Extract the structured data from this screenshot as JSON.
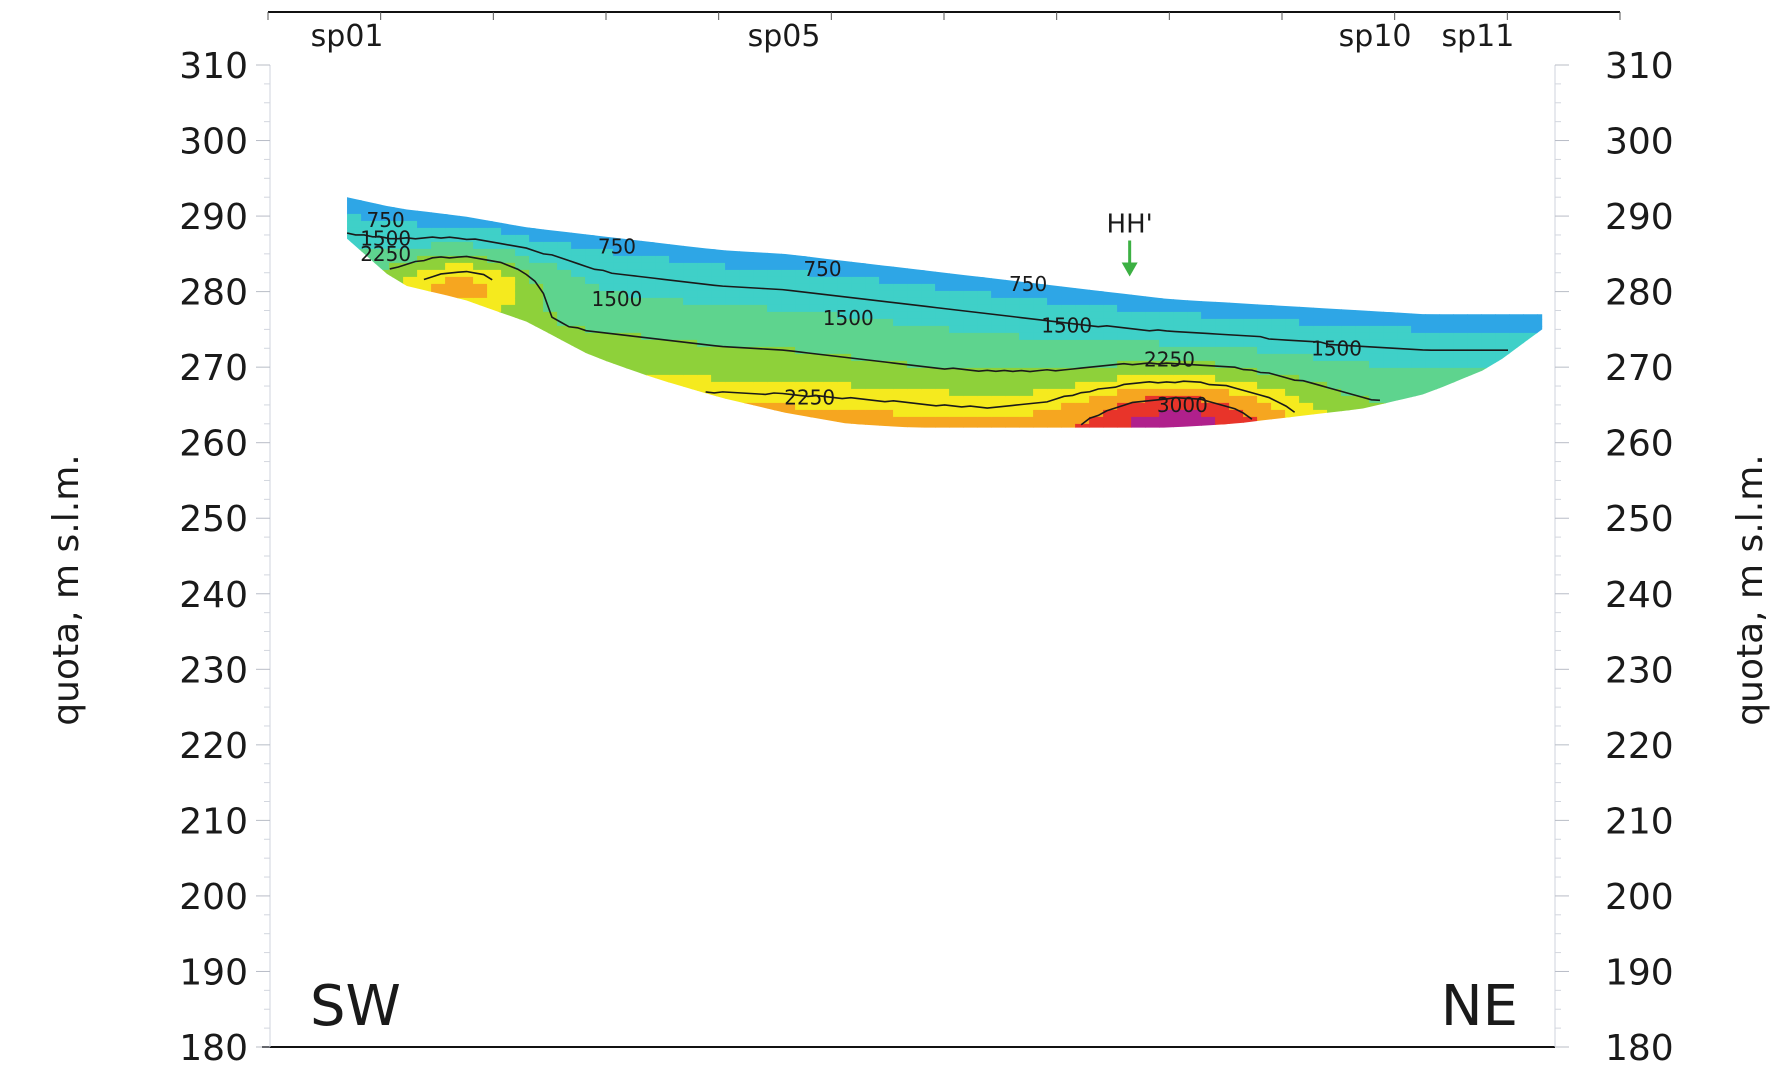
{
  "chart_data": {
    "type": "heatmap",
    "title": "",
    "ylabel": "quota, m s.l.m.",
    "ylabel_right": "quota, m s.l.m.",
    "ylim": [
      180,
      310
    ],
    "yticks": [
      310,
      300,
      290,
      280,
      270,
      260,
      250,
      240,
      230,
      220,
      210,
      200,
      190,
      180
    ],
    "xlim": [
      0,
      1
    ],
    "shotpoints": [
      {
        "label": "sp01",
        "x": 0.06
      },
      {
        "label": "sp05",
        "x": 0.4
      },
      {
        "label": "sp10",
        "x": 0.86
      },
      {
        "label": "sp11",
        "x": 0.94
      }
    ],
    "marker": {
      "label": "HH'",
      "x": 0.669,
      "elevation": 282,
      "color": "#3cb043"
    },
    "direction_left": "SW",
    "direction_right": "NE",
    "section": {
      "x": [
        0.06,
        0.1,
        0.15,
        0.2,
        0.25,
        0.3,
        0.35,
        0.4,
        0.45,
        0.5,
        0.55,
        0.6,
        0.65,
        0.7,
        0.75,
        0.8,
        0.85,
        0.9,
        0.95,
        0.99
      ],
      "top": [
        292.5,
        291.0,
        290.0,
        288.5,
        287.5,
        286.5,
        285.5,
        285.0,
        284.0,
        283.0,
        282.0,
        281.0,
        280.0,
        279.0,
        278.5,
        278.0,
        277.5,
        277.0,
        277.0,
        277.0
      ],
      "bottom": [
        287.0,
        281.0,
        279.0,
        276.0,
        271.5,
        268.5,
        266.0,
        264.0,
        262.5,
        262.0,
        262.0,
        262.0,
        262.0,
        262.0,
        262.5,
        263.5,
        264.5,
        266.5,
        270.0,
        275.0
      ]
    },
    "colorbar": {
      "levels": [
        0,
        500,
        1000,
        1500,
        2000,
        2500,
        3000,
        3500
      ],
      "colors": [
        "#2ea6e6",
        "#3fd0c8",
        "#5ed48e",
        "#8ed13a",
        "#f5ea1e",
        "#f6a620",
        "#e8342a",
        "#b0208c"
      ]
    },
    "contours": [
      {
        "value": 750,
        "labels": [
          {
            "x": 0.09,
            "y": 289.5
          },
          {
            "x": 0.27,
            "y": 286.0
          },
          {
            "x": 0.43,
            "y": 283.0
          },
          {
            "x": 0.59,
            "y": 281.0
          }
        ]
      },
      {
        "value": 1500,
        "labels": [
          {
            "x": 0.09,
            "y": 287.0
          },
          {
            "x": 0.27,
            "y": 279.0
          },
          {
            "x": 0.45,
            "y": 276.5
          },
          {
            "x": 0.62,
            "y": 275.5
          },
          {
            "x": 0.83,
            "y": 272.5
          }
        ]
      },
      {
        "value": 2250,
        "labels": [
          {
            "x": 0.09,
            "y": 285.0
          },
          {
            "x": 0.42,
            "y": 266.0
          },
          {
            "x": 0.7,
            "y": 271.0
          }
        ]
      },
      {
        "value": 3000,
        "labels": [
          {
            "x": 0.71,
            "y": 265.0
          }
        ]
      }
    ]
  }
}
